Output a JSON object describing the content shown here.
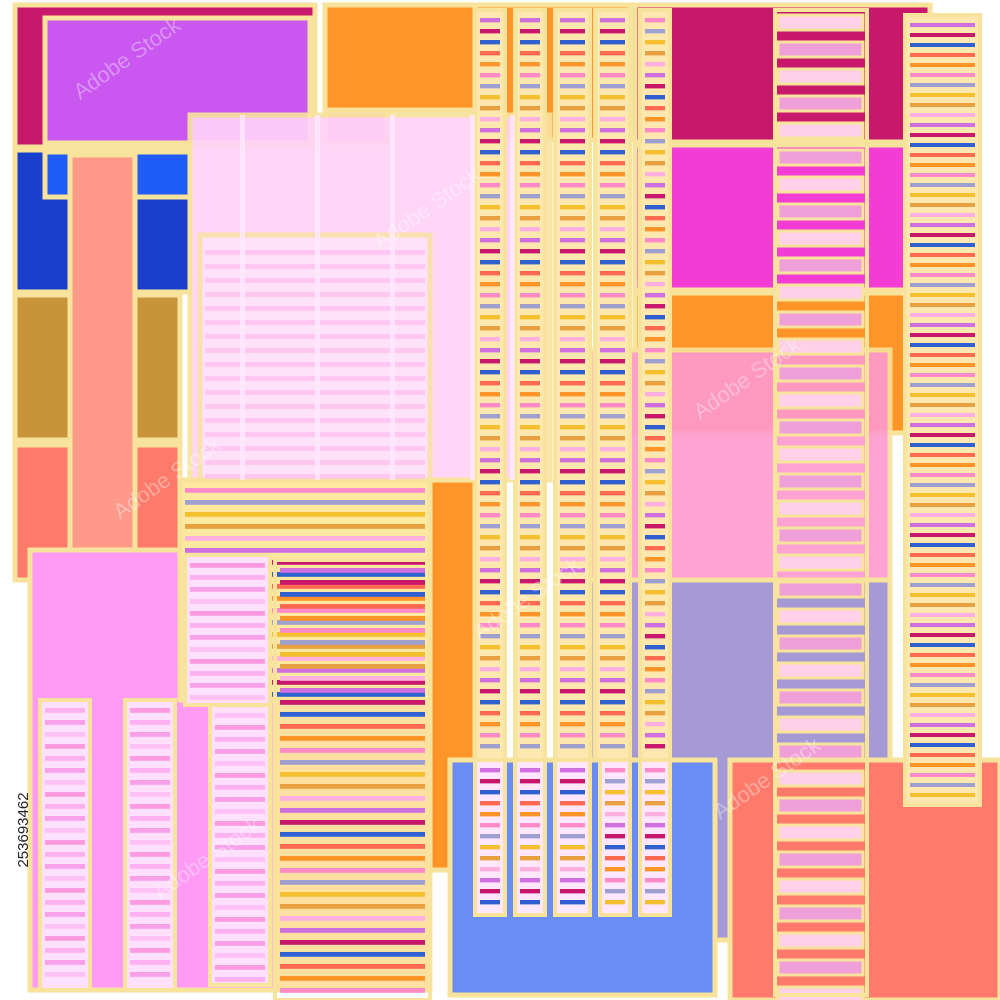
{
  "id_text": "253693462",
  "watermark": "Adobe Stock"
}
